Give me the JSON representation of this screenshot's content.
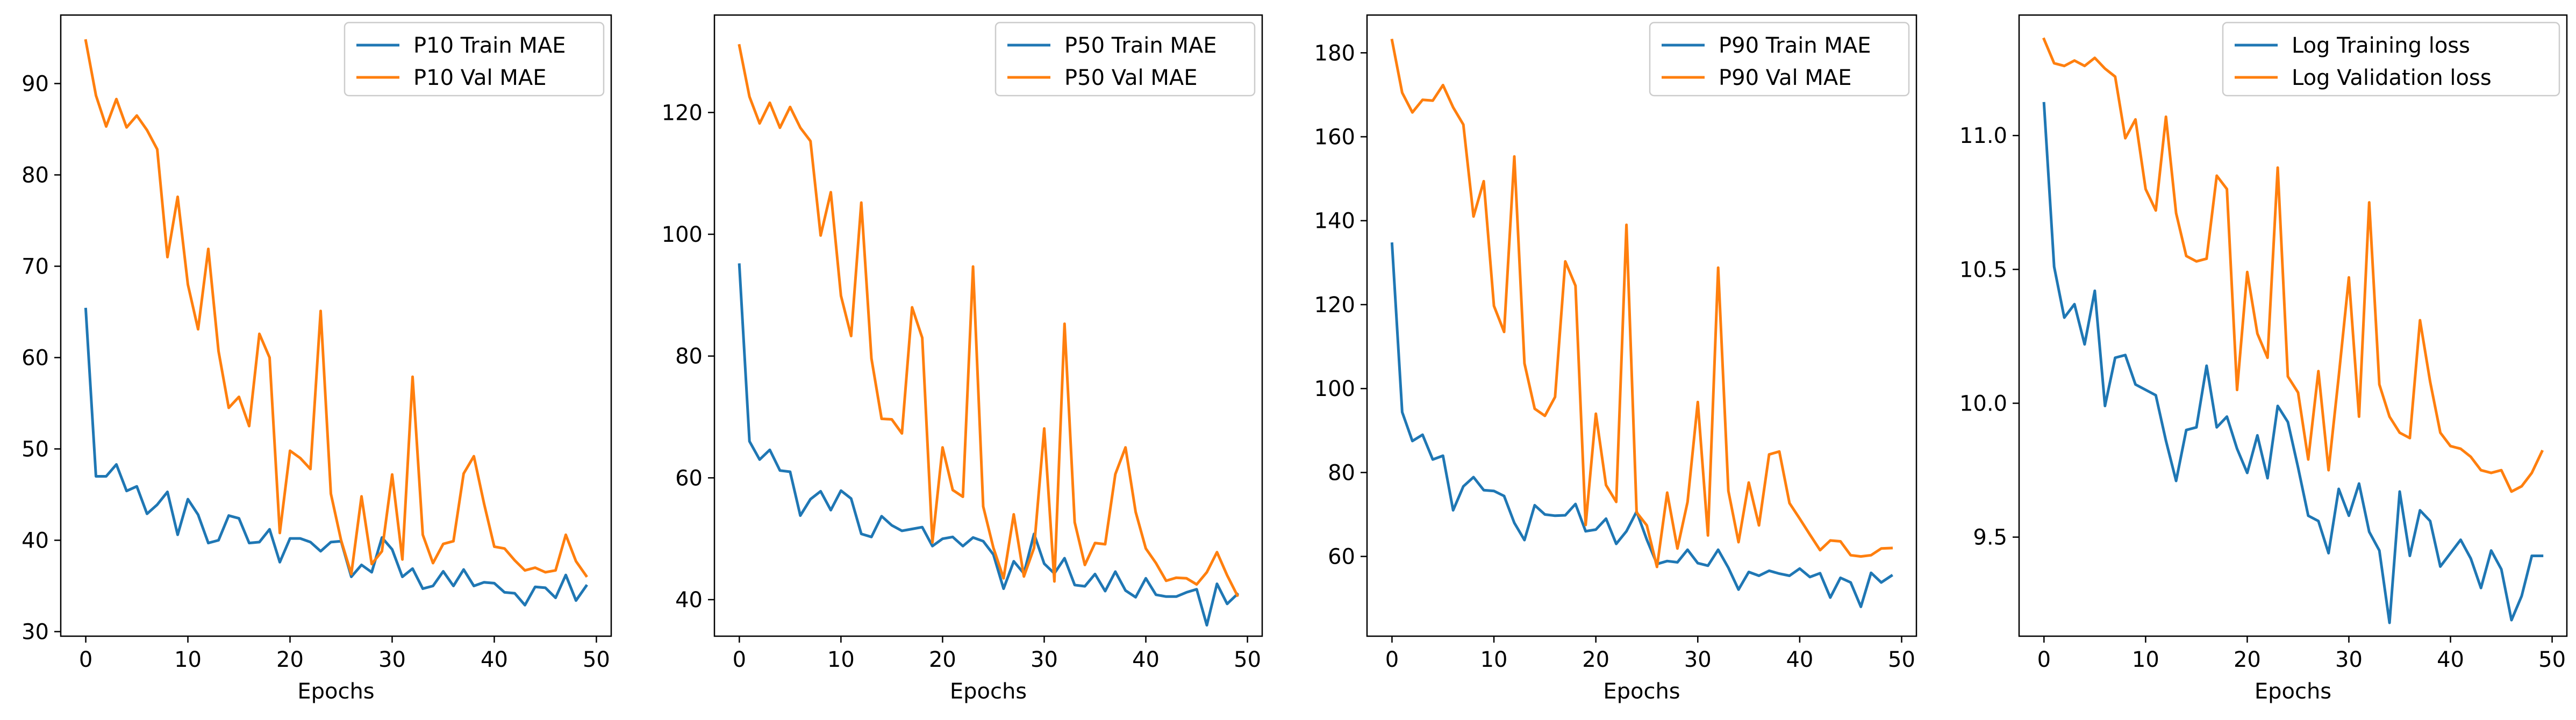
{
  "colors": {
    "train": "#1f77b4",
    "val": "#ff7f0e"
  },
  "chart_data": [
    {
      "type": "line",
      "xlabel": "Epochs",
      "xlim": [
        -2.45,
        51.45
      ],
      "ylim": [
        29.5,
        97.5
      ],
      "xticks": [
        0,
        10,
        20,
        30,
        40,
        50
      ],
      "yticks": [
        30,
        40,
        50,
        60,
        70,
        80,
        90
      ],
      "ytick_labels": [
        "30",
        "40",
        "50",
        "60",
        "70",
        "80",
        "90"
      ],
      "legend_position": "upper right",
      "grid": false,
      "series": [
        {
          "name": "P10 Train MAE",
          "color": "#1f77b4",
          "values": [
            65.3,
            47.0,
            47.0,
            48.3,
            45.4,
            45.9,
            42.9,
            43.9,
            45.3,
            40.6,
            44.5,
            42.8,
            39.7,
            40.0,
            42.7,
            42.4,
            39.7,
            39.8,
            41.2,
            37.6,
            40.2,
            40.2,
            39.8,
            38.8,
            39.8,
            39.9,
            36.0,
            37.3,
            36.5,
            40.3,
            39.0,
            36.0,
            36.9,
            34.7,
            35.0,
            36.6,
            35.0,
            36.8,
            35.0,
            35.4,
            35.3,
            34.3,
            34.2,
            32.9,
            34.9,
            34.8,
            33.7,
            36.2,
            33.4,
            35.0
          ]
        },
        {
          "name": "P10 Val MAE",
          "color": "#ff7f0e",
          "values": [
            94.7,
            88.7,
            85.3,
            88.3,
            85.2,
            86.5,
            84.9,
            82.8,
            71.0,
            77.6,
            68.0,
            63.1,
            71.9,
            60.7,
            54.5,
            55.7,
            52.5,
            62.6,
            60.0,
            40.8,
            49.8,
            49.0,
            47.8,
            65.1,
            45.1,
            40.0,
            36.3,
            44.8,
            37.4,
            38.8,
            47.2,
            37.9,
            57.9,
            40.6,
            37.5,
            39.6,
            39.9,
            47.3,
            49.2,
            44.0,
            39.3,
            39.1,
            37.8,
            36.7,
            37.0,
            36.5,
            36.7,
            40.6,
            37.7,
            36.1
          ]
        }
      ]
    },
    {
      "type": "line",
      "xlabel": "Epochs",
      "xlim": [
        -2.45,
        51.45
      ],
      "ylim": [
        34.0,
        136.0
      ],
      "xticks": [
        0,
        10,
        20,
        30,
        40,
        50
      ],
      "yticks": [
        40,
        60,
        80,
        100,
        120
      ],
      "ytick_labels": [
        "40",
        "60",
        "80",
        "100",
        "120"
      ],
      "legend_position": "upper right",
      "grid": false,
      "series": [
        {
          "name": "P50 Train MAE",
          "color": "#1f77b4",
          "values": [
            95.0,
            66.0,
            63.0,
            64.6,
            61.2,
            61.0,
            53.8,
            56.5,
            57.8,
            54.7,
            57.9,
            56.6,
            50.8,
            50.3,
            53.7,
            52.2,
            51.3,
            51.6,
            51.9,
            48.8,
            50.0,
            50.3,
            48.8,
            50.2,
            49.6,
            47.4,
            41.8,
            46.3,
            44.3,
            50.8,
            45.9,
            44.3,
            46.8,
            42.4,
            42.2,
            44.2,
            41.4,
            44.6,
            41.5,
            40.4,
            43.5,
            40.8,
            40.5,
            40.5,
            41.2,
            41.7,
            35.8,
            42.6,
            39.3,
            40.9
          ]
        },
        {
          "name": "P50 Val MAE",
          "color": "#ff7f0e",
          "values": [
            131.0,
            122.6,
            118.2,
            121.6,
            117.5,
            120.9,
            117.5,
            115.3,
            99.8,
            106.9,
            89.9,
            83.3,
            105.2,
            79.6,
            69.7,
            69.6,
            67.3,
            88.0,
            83.0,
            49.4,
            65.0,
            58.0,
            56.9,
            94.7,
            55.3,
            48.5,
            43.5,
            54.0,
            43.8,
            48.5,
            68.1,
            43.0,
            85.3,
            52.7,
            45.7,
            49.3,
            49.1,
            60.6,
            65.0,
            54.4,
            48.4,
            46.0,
            43.1,
            43.6,
            43.5,
            42.5,
            44.5,
            47.8,
            44.0,
            40.7
          ]
        }
      ]
    },
    {
      "type": "line",
      "xlabel": "Epochs",
      "xlim": [
        -2.45,
        51.45
      ],
      "ylim": [
        41.0,
        189.0
      ],
      "xticks": [
        0,
        10,
        20,
        30,
        40,
        50
      ],
      "yticks": [
        60,
        80,
        100,
        120,
        140,
        160,
        180
      ],
      "ytick_labels": [
        "60",
        "80",
        "100",
        "120",
        "140",
        "160",
        "180"
      ],
      "legend_position": "upper right",
      "grid": false,
      "series": [
        {
          "name": "P90 Train MAE",
          "color": "#1f77b4",
          "values": [
            134.5,
            94.4,
            87.5,
            89.0,
            83.1,
            84.0,
            71.0,
            76.7,
            78.9,
            75.8,
            75.6,
            74.4,
            68.0,
            63.9,
            72.2,
            70.0,
            69.7,
            69.8,
            72.5,
            66.0,
            66.4,
            69.0,
            63.0,
            66.0,
            70.7,
            64.0,
            58.2,
            58.9,
            58.6,
            61.6,
            58.4,
            57.8,
            61.6,
            57.3,
            52.1,
            56.3,
            55.4,
            56.6,
            55.9,
            55.4,
            57.1,
            55.1,
            56.0,
            50.2,
            54.9,
            53.8,
            48.0,
            56.1,
            53.8,
            55.4
          ]
        },
        {
          "name": "P90 Val MAE",
          "color": "#ff7f0e",
          "values": [
            183.0,
            170.5,
            165.8,
            168.8,
            168.6,
            172.3,
            167.0,
            162.9,
            141.0,
            149.4,
            119.7,
            113.5,
            155.3,
            106.0,
            95.2,
            93.5,
            98.0,
            130.3,
            124.5,
            67.5,
            94.0,
            77.0,
            73.0,
            139.0,
            70.5,
            67.4,
            57.5,
            75.2,
            61.9,
            73.0,
            96.8,
            65.0,
            128.8,
            75.6,
            63.4,
            77.6,
            67.4,
            84.3,
            85.0,
            72.7,
            69.0,
            65.2,
            61.5,
            63.8,
            63.6,
            60.3,
            60.0,
            60.3,
            61.9,
            62.0
          ]
        }
      ]
    },
    {
      "type": "line",
      "xlabel": "Epochs",
      "xlim": [
        -2.45,
        51.45
      ],
      "ylim": [
        9.13,
        11.45
      ],
      "xticks": [
        0,
        10,
        20,
        30,
        40,
        50
      ],
      "yticks": [
        9.5,
        10.0,
        10.5,
        11.0
      ],
      "ytick_labels": [
        "9.5",
        "10.0",
        "10.5",
        "11.0"
      ],
      "legend_position": "upper right",
      "grid": false,
      "series": [
        {
          "name": "Log Training loss",
          "color": "#1f77b4",
          "values": [
            11.12,
            10.51,
            10.32,
            10.37,
            10.22,
            10.42,
            9.99,
            10.17,
            10.18,
            10.07,
            10.05,
            10.03,
            9.86,
            9.71,
            9.9,
            9.91,
            10.14,
            9.91,
            9.95,
            9.83,
            9.74,
            9.88,
            9.72,
            9.99,
            9.93,
            9.76,
            9.58,
            9.56,
            9.44,
            9.68,
            9.58,
            9.7,
            9.52,
            9.45,
            9.18,
            9.67,
            9.43,
            9.6,
            9.56,
            9.39,
            9.44,
            9.49,
            9.42,
            9.31,
            9.45,
            9.38,
            9.19,
            9.28,
            9.43,
            9.43
          ]
        },
        {
          "name": "Log Validation loss",
          "color": "#ff7f0e",
          "values": [
            11.36,
            11.27,
            11.26,
            11.28,
            11.26,
            11.29,
            11.25,
            11.22,
            10.99,
            11.06,
            10.8,
            10.72,
            11.07,
            10.71,
            10.55,
            10.53,
            10.54,
            10.85,
            10.8,
            10.05,
            10.49,
            10.26,
            10.17,
            10.88,
            10.1,
            10.04,
            9.79,
            10.12,
            9.75,
            10.1,
            10.47,
            9.95,
            10.75,
            10.07,
            9.95,
            9.89,
            9.87,
            10.31,
            10.08,
            9.89,
            9.84,
            9.83,
            9.8,
            9.75,
            9.74,
            9.75,
            9.67,
            9.69,
            9.74,
            9.82
          ]
        }
      ]
    }
  ]
}
